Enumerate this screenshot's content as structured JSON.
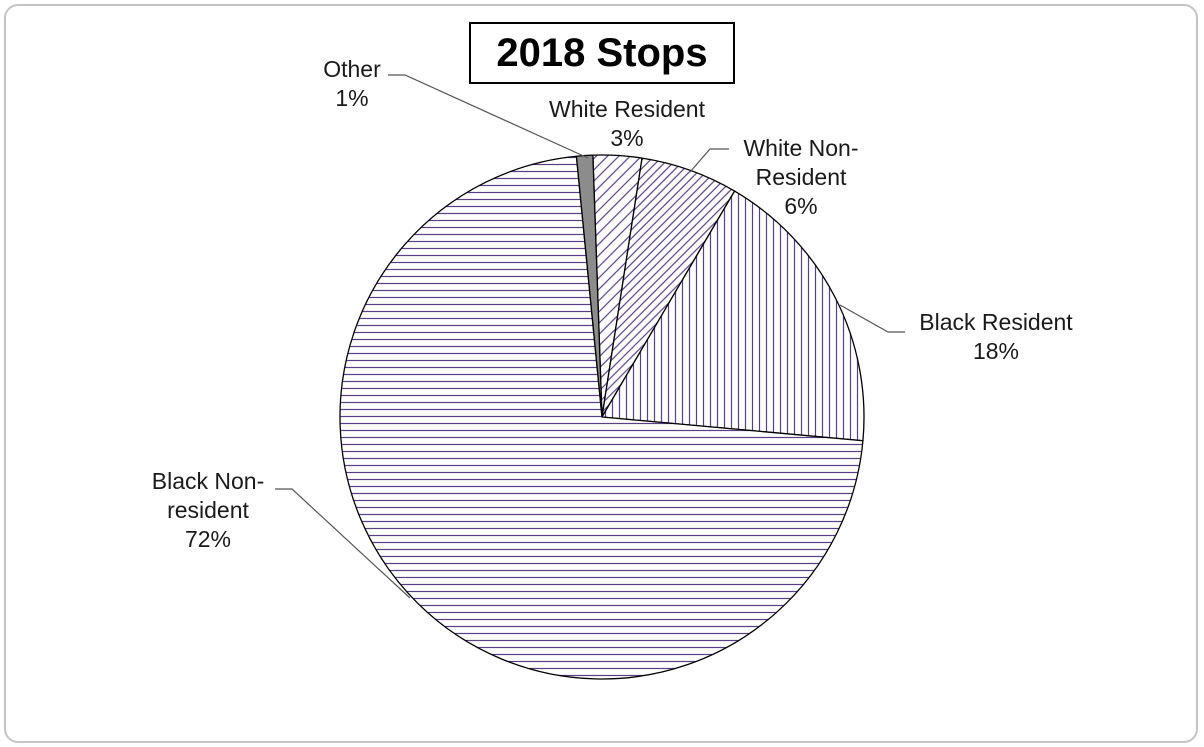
{
  "chart_data": {
    "type": "pie",
    "title": "2018 Stops",
    "start_angle_deg": -2,
    "slices": [
      {
        "key": "white-resident",
        "label_lines": [
          "White Resident",
          "3%"
        ],
        "value": 3,
        "pattern": "diagonal-sparse"
      },
      {
        "key": "white-non-resident",
        "label_lines": [
          "White Non-",
          "Resident",
          "6%"
        ],
        "value": 6,
        "pattern": "diagonal-dense"
      },
      {
        "key": "black-resident",
        "label_lines": [
          "Black Resident",
          "18%"
        ],
        "value": 18,
        "pattern": "vertical"
      },
      {
        "key": "black-non-resident",
        "label_lines": [
          "Black Non-",
          "resident",
          "72%"
        ],
        "value": 72,
        "pattern": "horizontal"
      },
      {
        "key": "other",
        "label_lines": [
          "Other",
          "1%"
        ],
        "value": 1,
        "pattern": "solid-gray"
      }
    ],
    "colors": {
      "hatch": "#5a3f86",
      "fill": "#ffffff",
      "outline": "#000000",
      "other": "#8c8c8c",
      "leader": "#555555"
    },
    "legend": "none"
  }
}
